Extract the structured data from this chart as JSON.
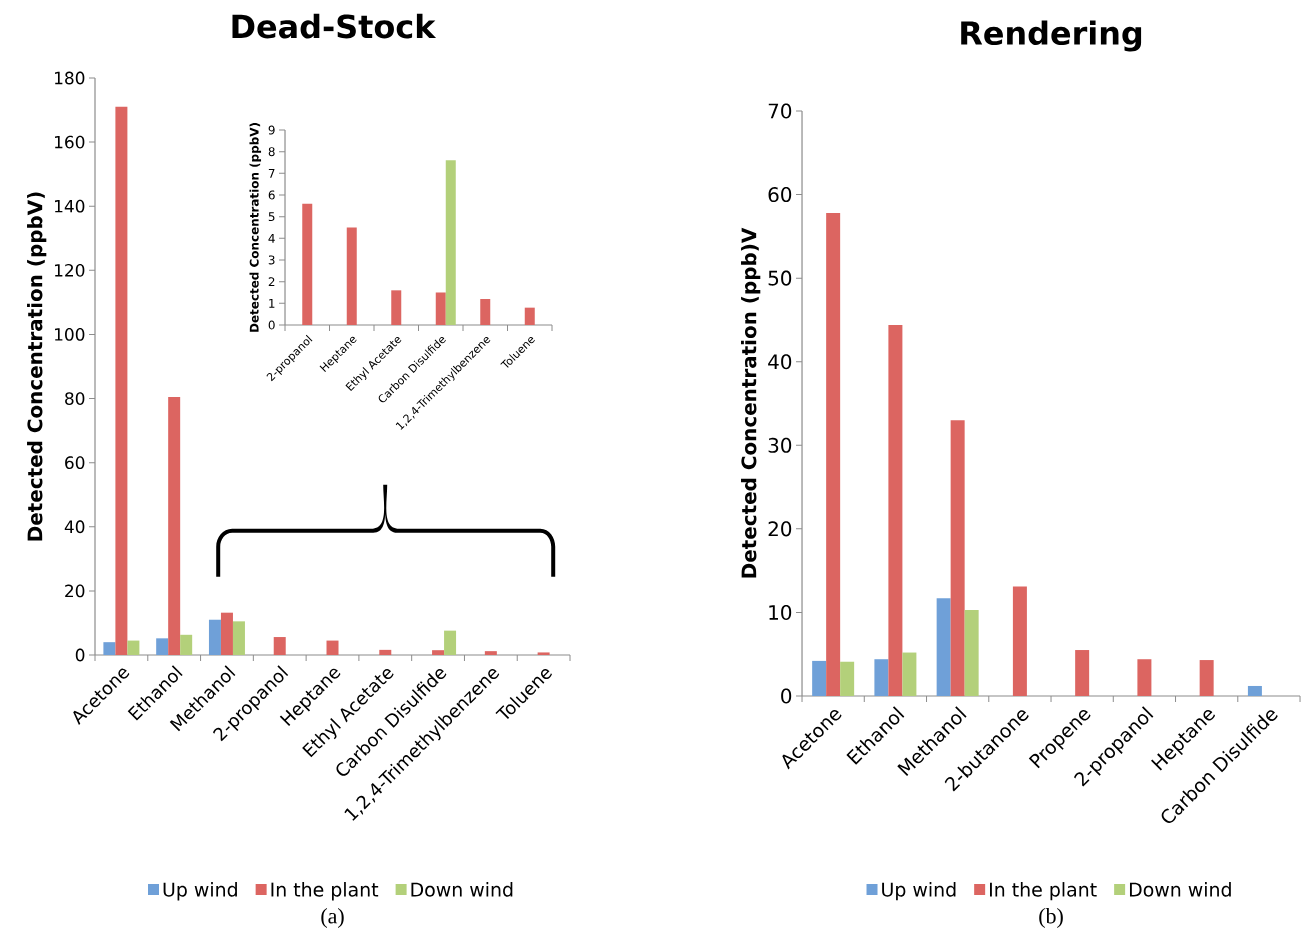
{
  "chart_data": [
    {
      "type": "bar",
      "title": "Dead-Stock",
      "ylabel": "Detected Concentration (ppbV)",
      "categories": [
        "Acetone",
        "Ethanol",
        "Methanol",
        "2-propanol",
        "Heptane",
        "Ethyl Acetate",
        "Carbon Disulfide",
        "1,2,4-Trimethylbenzene",
        "Toluene"
      ],
      "series": [
        {
          "name": "Up wind",
          "color": "#6fa0d8",
          "values": [
            4,
            5.2,
            11,
            null,
            null,
            null,
            null,
            null,
            null
          ]
        },
        {
          "name": "In the plant",
          "color": "#dc6561",
          "values": [
            171,
            80.5,
            13.2,
            5.6,
            4.5,
            1.6,
            1.5,
            1.2,
            0.8
          ]
        },
        {
          "name": "Down wind",
          "color": "#b3d07a",
          "values": [
            4.5,
            6.3,
            10.5,
            null,
            null,
            null,
            7.6,
            null,
            null
          ]
        }
      ],
      "ylim": [
        0,
        180
      ],
      "yticks": [
        0,
        20,
        40,
        60,
        80,
        100,
        120,
        140,
        160,
        180
      ],
      "legend": "bottom",
      "annotations": [
        "(a)"
      ]
    },
    {
      "type": "bar",
      "ylabel": "Detected Concentration (ppbV)",
      "categories": [
        "2-propanol",
        "Heptane",
        "Ethyl Acetate",
        "Carbon Disulfide",
        "1,2,4-Trimethylbenzene",
        "Toluene"
      ],
      "series": [
        {
          "color": "#6fa0d8",
          "values": [
            null,
            null,
            null,
            null,
            null,
            null
          ]
        },
        {
          "color": "#dc6561",
          "values": [
            5.6,
            4.5,
            1.6,
            1.5,
            1.2,
            0.8
          ]
        },
        {
          "color": "#b3d07a",
          "values": [
            null,
            null,
            null,
            7.6,
            null,
            null
          ]
        }
      ],
      "ylim": [
        0,
        9
      ],
      "yticks": [
        0,
        1,
        2,
        3,
        4,
        5,
        6,
        7,
        8,
        9
      ]
    },
    {
      "type": "bar",
      "title": "Rendering",
      "ylabel": "Detected Concentration (ppb)V",
      "categories": [
        "Acetone",
        "Ethanol",
        "Methanol",
        "2-butanone",
        "Propene",
        "2-propanol",
        "Heptane",
        "Carbon Disulfide"
      ],
      "series": [
        {
          "name": "Up wind",
          "color": "#6fa0d8",
          "values": [
            4.2,
            4.4,
            11.7,
            null,
            null,
            null,
            null,
            1.2
          ]
        },
        {
          "name": "In the plant",
          "color": "#dc6561",
          "values": [
            57.8,
            44.4,
            33,
            13.1,
            5.5,
            4.4,
            4.3,
            null
          ]
        },
        {
          "name": "Down wind",
          "color": "#b3d07a",
          "values": [
            4.1,
            5.2,
            10.3,
            null,
            null,
            null,
            null,
            null
          ]
        }
      ],
      "ylim": [
        0,
        70
      ],
      "yticks": [
        0,
        10,
        20,
        30,
        40,
        50,
        60,
        70
      ],
      "legend": "bottom",
      "annotations": [
        "(b)"
      ]
    }
  ]
}
